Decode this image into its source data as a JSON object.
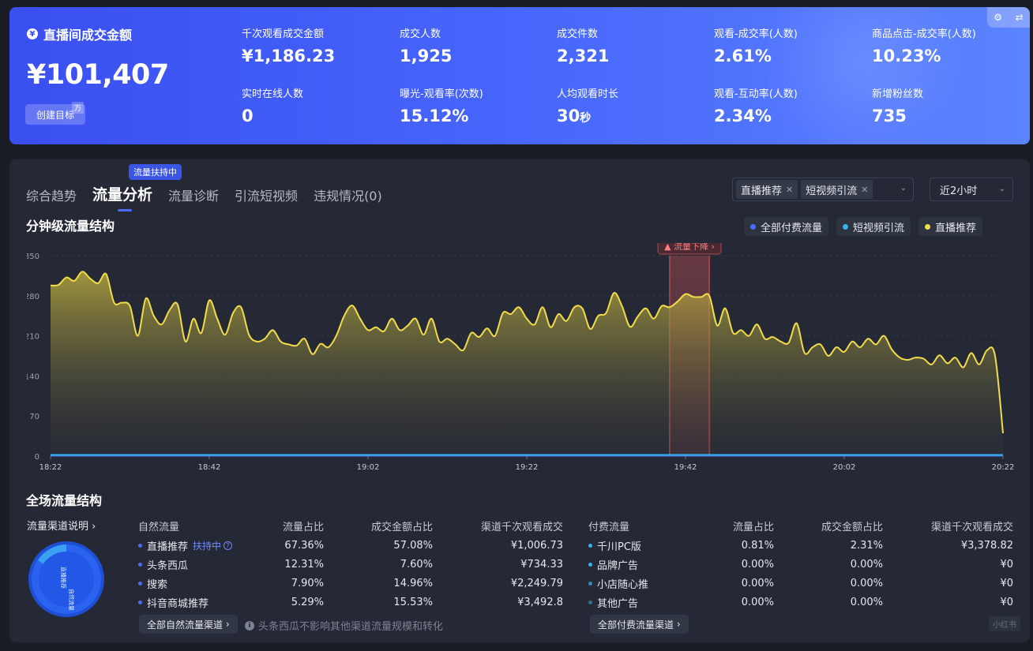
{
  "summary": {
    "title": "直播间成交金额",
    "yen_icon": "¥",
    "main_value": "¥101,407",
    "main_value_unit": "万",
    "create_goal_label": "创建目标",
    "kpis": [
      {
        "label": "千次观看成交金额",
        "value": "¥1,186.23"
      },
      {
        "label": "成交人数",
        "value": "1,925"
      },
      {
        "label": "成交件数",
        "value": "2,321"
      },
      {
        "label": "观看-成交率(人数)",
        "value": "2.61%"
      },
      {
        "label": "商品点击-成交率(人数)",
        "value": "10.23%"
      },
      {
        "label": "实时在线人数",
        "value": "0"
      },
      {
        "label": "曝光-观看率(次数)",
        "value": "15.12%"
      },
      {
        "label": "人均观看时长",
        "value": "30",
        "unit": "秒"
      },
      {
        "label": "观看-互动率(人数)",
        "value": "2.34%"
      },
      {
        "label": "新增粉丝数",
        "value": "735"
      }
    ]
  },
  "tabs": [
    {
      "label": "综合趋势"
    },
    {
      "label": "流量分析"
    },
    {
      "label": "流量诊断"
    },
    {
      "label": "引流短视频"
    },
    {
      "label": "违规情况(0)"
    }
  ],
  "tab_badge": "流量扶持中",
  "filters": {
    "chips": [
      "直播推荐",
      "短视频引流"
    ],
    "time_range": "近2小时"
  },
  "minute_section": {
    "title": "分钟级流量结构",
    "legend": [
      {
        "label": "全部付费流量",
        "color": "#4e6bff"
      },
      {
        "label": "短视频引流",
        "color": "#36b3f0"
      },
      {
        "label": "直播推荐",
        "color": "#f2dc4b"
      }
    ],
    "alert_label": "流量下降"
  },
  "chart_data": {
    "type": "area",
    "x_ticks": [
      "18:22",
      "18:42",
      "19:02",
      "19:22",
      "19:42",
      "20:02",
      "20:22"
    ],
    "y_ticks": [
      0,
      70,
      140,
      210,
      280,
      350
    ],
    "ylim": [
      0,
      350
    ],
    "alert_window": {
      "label": "流量下降",
      "start": "19:40",
      "end": "19:45"
    },
    "series": [
      {
        "name": "直播推荐",
        "color": "#f2dc4b",
        "x": [
          "18:22",
          "18:23",
          "18:24",
          "18:25",
          "18:26",
          "18:27",
          "18:28",
          "18:29",
          "18:30",
          "18:31",
          "18:32",
          "18:33",
          "18:34",
          "18:35",
          "18:36",
          "18:37",
          "18:38",
          "18:39",
          "18:40",
          "18:41",
          "18:42",
          "18:43",
          "18:44",
          "18:45",
          "18:46",
          "18:47",
          "18:48",
          "18:49",
          "18:50",
          "18:51",
          "18:52",
          "18:53",
          "18:54",
          "18:55",
          "18:56",
          "18:57",
          "18:58",
          "18:59",
          "19:00",
          "19:01",
          "19:02",
          "19:03",
          "19:04",
          "19:05",
          "19:06",
          "19:07",
          "19:08",
          "19:09",
          "19:10",
          "19:11",
          "19:12",
          "19:13",
          "19:14",
          "19:15",
          "19:16",
          "19:17",
          "19:18",
          "19:19",
          "19:20",
          "19:21",
          "19:22",
          "19:23",
          "19:24",
          "19:25",
          "19:26",
          "19:27",
          "19:28",
          "19:29",
          "19:30",
          "19:31",
          "19:32",
          "19:33",
          "19:34",
          "19:35",
          "19:36",
          "19:37",
          "19:38",
          "19:39",
          "19:40",
          "19:41",
          "19:42",
          "19:43",
          "19:44",
          "19:45",
          "19:46",
          "19:47",
          "19:48",
          "19:49",
          "19:50",
          "19:51",
          "19:52",
          "19:53",
          "19:54",
          "19:55",
          "19:56",
          "19:57",
          "19:58",
          "19:59",
          "20:00",
          "20:01",
          "20:02",
          "20:03",
          "20:04",
          "20:05",
          "20:06",
          "20:07",
          "20:08",
          "20:09",
          "20:10",
          "20:11",
          "20:12",
          "20:13",
          "20:14",
          "20:15",
          "20:16",
          "20:17",
          "20:18",
          "20:19",
          "20:20",
          "20:21",
          "20:22"
        ],
        "values": [
          298,
          299,
          312,
          306,
          322,
          310,
          302,
          318,
          268,
          268,
          262,
          210,
          275,
          245,
          230,
          255,
          265,
          200,
          240,
          215,
          272,
          240,
          212,
          250,
          260,
          212,
          200,
          205,
          220,
          200,
          195,
          193,
          205,
          178,
          196,
          190,
          210,
          245,
          263,
          240,
          220,
          225,
          218,
          240,
          220,
          228,
          240,
          212,
          240,
          200,
          205,
          195,
          185,
          215,
          208,
          223,
          210,
          250,
          248,
          260,
          240,
          230,
          260,
          225,
          248,
          236,
          260,
          258,
          222,
          245,
          250,
          285,
          262,
          226,
          244,
          258,
          240,
          262,
          260,
          270,
          283,
          278,
          278,
          280,
          228,
          258,
          215,
          220,
          210,
          230,
          205,
          208,
          200,
          198,
          232,
          180,
          190,
          195,
          175,
          190,
          182,
          200,
          190,
          205,
          195,
          210,
          186,
          172,
          168,
          172,
          170,
          160,
          176,
          162,
          172,
          155,
          180,
          160,
          185,
          175,
          40
        ]
      },
      {
        "name": "短视频引流",
        "color": "#36b3f0",
        "values_note": "near 0",
        "values": [
          2,
          2,
          2,
          2,
          2,
          2,
          2
        ]
      },
      {
        "name": "全部付费流量",
        "color": "#4e6bff",
        "values": [
          0,
          0,
          0,
          0,
          0,
          0,
          0
        ]
      }
    ]
  },
  "overall_section": {
    "title": "全场流量结构",
    "channel_desc": "流量渠道说明",
    "donut": {
      "segments": [
        {
          "label": "直播推荐",
          "value": 67.36,
          "color": "#2f62f0"
        },
        {
          "label": "其他",
          "value": 32.64,
          "color": "#2d7bf5"
        }
      ],
      "inner_label_a": "直播推荐",
      "inner_label_b": "自然流量"
    },
    "natural": {
      "headers": [
        "自然流量",
        "流量占比",
        "成交金额占比",
        "渠道千次观看成交"
      ],
      "support_tag": "扶持中",
      "rows": [
        {
          "name": "直播推荐",
          "share": "67.36%",
          "gmv_share": "57.08%",
          "gpm": "¥1,006.73",
          "color": "#4e6bff"
        },
        {
          "name": "头条西瓜",
          "share": "12.31%",
          "gmv_share": "7.60%",
          "gpm": "¥734.33",
          "color": "#4e6bff"
        },
        {
          "name": "搜索",
          "share": "7.90%",
          "gmv_share": "14.96%",
          "gpm": "¥2,249.79",
          "color": "#4e6bff"
        },
        {
          "name": "抖音商城推荐",
          "share": "5.29%",
          "gmv_share": "15.53%",
          "gpm": "¥3,492.8",
          "color": "#4e6bff"
        }
      ],
      "all_link": "全部自然流量渠道"
    },
    "paid": {
      "headers": [
        "付费流量",
        "流量占比",
        "成交金额占比",
        "渠道千次观看成交"
      ],
      "rows": [
        {
          "name": "千川PC版",
          "share": "0.81%",
          "gmv_share": "2.31%",
          "gpm": "¥3,378.82",
          "color": "#36b3f0"
        },
        {
          "name": "品牌广告",
          "share": "0.00%",
          "gmv_share": "0.00%",
          "gpm": "¥0",
          "color": "#36b3f0"
        },
        {
          "name": "小店随心推",
          "share": "0.00%",
          "gmv_share": "0.00%",
          "gpm": "¥0",
          "color": "#2e8fb8"
        },
        {
          "name": "其他广告",
          "share": "0.00%",
          "gmv_share": "0.00%",
          "gpm": "¥0",
          "color": "#2e6f8f"
        }
      ],
      "all_link": "全部付费流量渠道"
    },
    "note": "头条西瓜不影响其他渠道流量规模和转化"
  },
  "watermark": "小红书"
}
